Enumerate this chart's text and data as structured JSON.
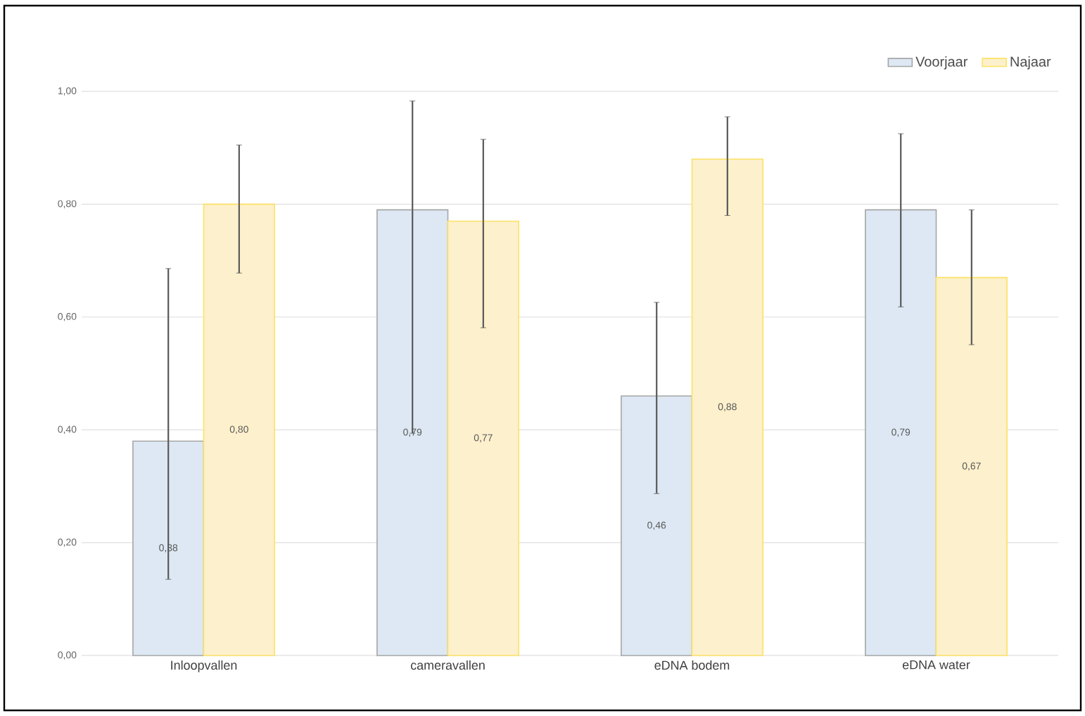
{
  "chart_data": {
    "type": "bar",
    "categories": [
      "Inloopvallen",
      "cameravallen",
      "eDNA bodem",
      "eDNA water"
    ],
    "series": [
      {
        "name": "Voorjaar",
        "color": "#dde8f4",
        "values": [
          0.38,
          0.79,
          0.46,
          0.79
        ],
        "errors": [
          [
            0.135,
            0.686
          ],
          [
            0.394,
            0.983
          ],
          [
            0.287,
            0.626
          ],
          [
            0.618,
            0.925
          ]
        ],
        "value_labels": [
          "0,38",
          "0,79",
          "0,46",
          "0,79"
        ]
      },
      {
        "name": "Najaar",
        "color": "#fdf0cc",
        "values": [
          0.8,
          0.77,
          0.88,
          0.67
        ],
        "errors": [
          [
            0.678,
            0.905
          ],
          [
            0.581,
            0.915
          ],
          [
            0.78,
            0.955
          ],
          [
            0.551,
            0.79
          ]
        ],
        "value_labels": [
          "0,80",
          "0,77",
          "0,88",
          "0,67"
        ]
      }
    ],
    "ylim": [
      0,
      1
    ],
    "yticks": [
      {
        "value": 0,
        "label": "0,00"
      },
      {
        "value": 0.2,
        "label": "0,20"
      },
      {
        "value": 0.4,
        "label": "0,40"
      },
      {
        "value": 0.6,
        "label": "0,60"
      },
      {
        "value": 0.8,
        "label": "0,80"
      },
      {
        "value": 1,
        "label": "1,00"
      }
    ],
    "grid": "y",
    "legend": "top right"
  }
}
